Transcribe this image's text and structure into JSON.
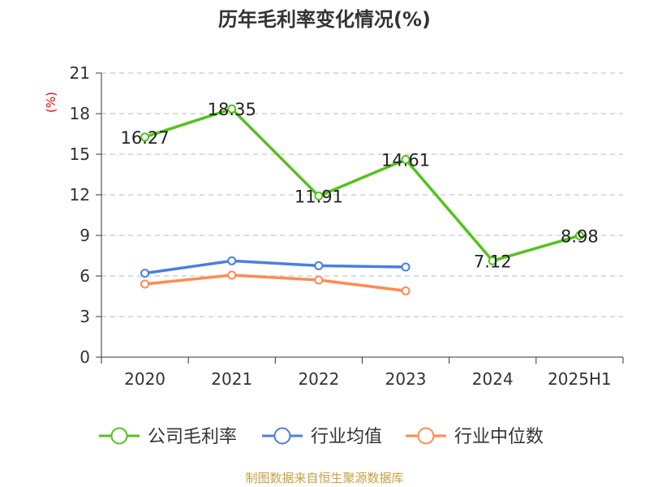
{
  "chart_data": {
    "type": "line",
    "title": "历年毛利率变化情况(%)",
    "ylabel": "(%)",
    "xlabel": "",
    "categories": [
      "2020",
      "2021",
      "2022",
      "2023",
      "2024",
      "2025H1"
    ],
    "ylim": [
      0,
      21
    ],
    "yticks": [
      0,
      3,
      6,
      9,
      12,
      15,
      18,
      21
    ],
    "grid": true,
    "legend_position": "bottom",
    "series": [
      {
        "name": "公司毛利率",
        "color": "#52c41a",
        "values": [
          16.27,
          18.35,
          11.91,
          14.61,
          7.12,
          8.98
        ],
        "labels": [
          "16.27",
          "18.35",
          "11.91",
          "14.61",
          "7.12",
          "8.98"
        ]
      },
      {
        "name": "行业均值",
        "color": "#4a7fe0",
        "values": [
          6.2,
          7.12,
          6.76,
          6.66,
          null,
          null
        ]
      },
      {
        "name": "行业中位数",
        "color": "#ff8a50",
        "values": [
          5.4,
          6.06,
          5.7,
          4.9,
          null,
          null
        ]
      }
    ],
    "source": "制图数据来自恒生聚源数据库"
  }
}
